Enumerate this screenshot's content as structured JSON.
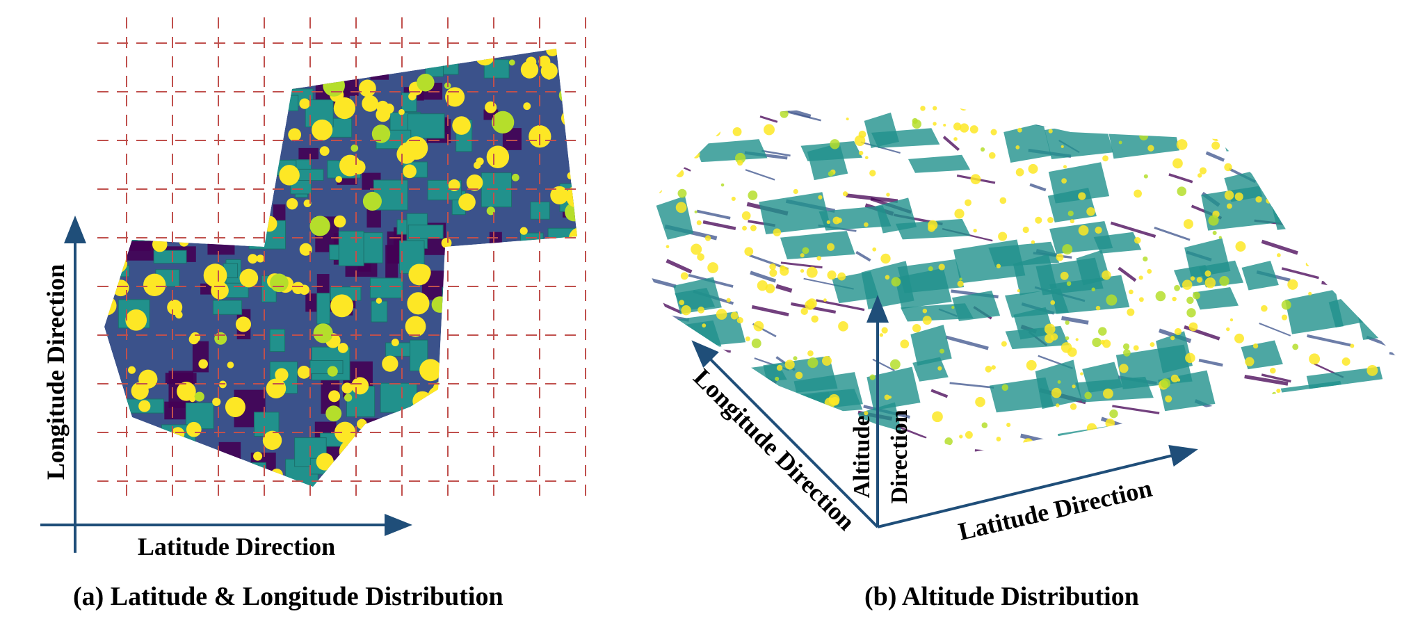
{
  "panel_a": {
    "caption": "(a) Latitude & Longitude Distribution",
    "x_axis_label": "Latitude Direction",
    "y_axis_label": "Longitude Direction"
  },
  "panel_b": {
    "caption": "(b) Altitude Distribution",
    "latitude_label": "Latitude Direction",
    "longitude_label": "Longitude Direction",
    "altitude_label_line1": "Altitude",
    "altitude_label_line2": "Direction"
  },
  "colors": {
    "axis": "#1f4e79",
    "grid": "#c0504d",
    "ground": "#3b528b",
    "low": "#440154",
    "building": "#21918c",
    "vegetation": "#fde725",
    "mid_vegetation": "#b5de2b"
  }
}
